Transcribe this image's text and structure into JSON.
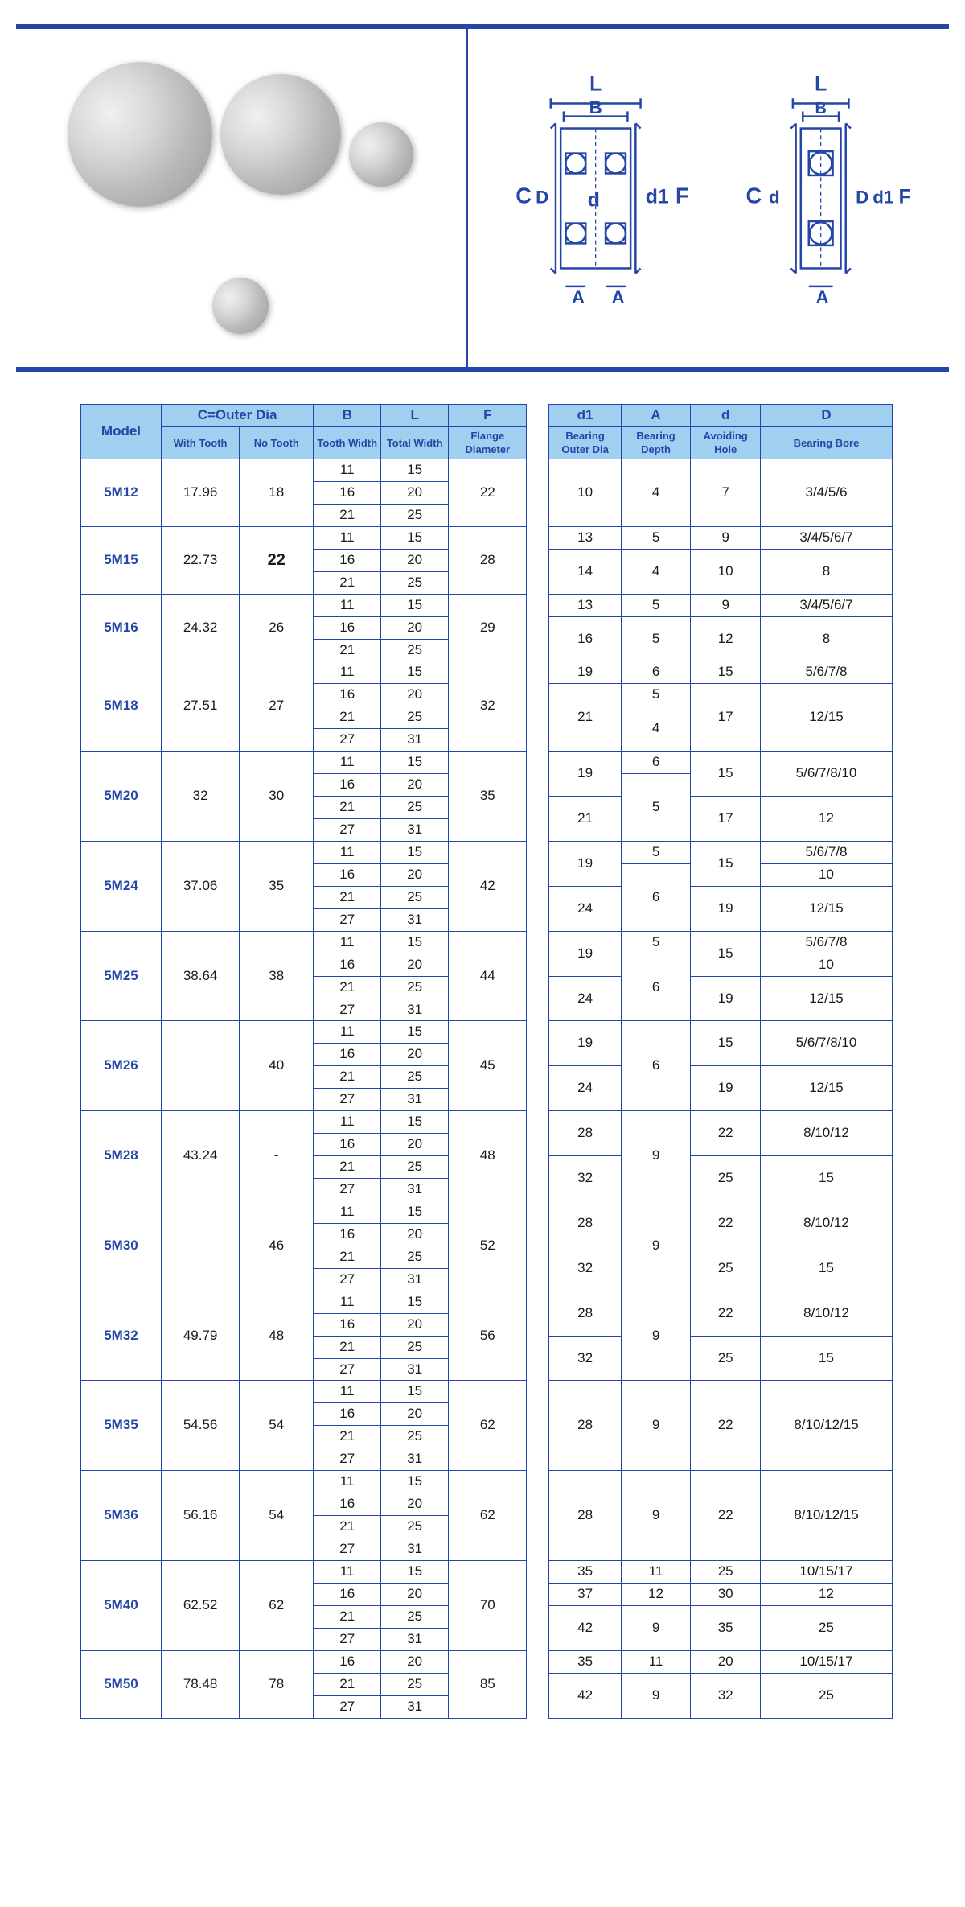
{
  "diagram_labels": {
    "L": "L",
    "B": "B",
    "C": "C",
    "D_upper": "D",
    "d": "d",
    "d1": "d1",
    "F": "F",
    "A": "A"
  },
  "headers": {
    "model": "Model",
    "c_group": "C=Outer Dia",
    "with_tooth": "With Tooth",
    "no_tooth": "No Tooth",
    "B": "B",
    "B_sub": "Tooth Width",
    "L": "L",
    "L_sub": "Total Width",
    "F": "F",
    "F_sub": "Flange Diameter",
    "d1": "d1",
    "d1_sub": "Bearing Outer Dia",
    "A": "A",
    "A_sub": "Bearing Depth",
    "d": "d",
    "d_sub": "Avoiding Hole",
    "D": "D",
    "D_sub": "Bearing Bore"
  },
  "rows": [
    {
      "model": "5M12",
      "wt": "17.96",
      "nt": "18",
      "B": [
        "11",
        "16",
        "21"
      ],
      "L": [
        "15",
        "20",
        "25"
      ],
      "F": "22",
      "right": [
        {
          "d1": "10",
          "A": "4",
          "d": "7",
          "D": "3/4/5/6"
        }
      ]
    },
    {
      "model": "5M15",
      "wt": "22.73",
      "nt": "22",
      "nt_bold": true,
      "B": [
        "11",
        "16",
        "21"
      ],
      "L": [
        "15",
        "20",
        "25"
      ],
      "F": "28",
      "right": [
        {
          "d1": "13",
          "A": "5",
          "d": "9",
          "D": "3/4/5/6/7"
        },
        {
          "d1": "14",
          "A": "4",
          "d": "10",
          "D": "8"
        }
      ]
    },
    {
      "model": "5M16",
      "wt": "24.32",
      "nt": "26",
      "B": [
        "11",
        "16",
        "21"
      ],
      "L": [
        "15",
        "20",
        "25"
      ],
      "F": "29",
      "right": [
        {
          "d1": "13",
          "A": "5",
          "d": "9",
          "D": "3/4/5/6/7"
        },
        {
          "d1": "16",
          "A": "5",
          "d": "12",
          "D": "8"
        }
      ]
    },
    {
      "model": "5M18",
      "wt": "27.51",
      "nt": "27",
      "B": [
        "11",
        "16",
        "21",
        "27"
      ],
      "L": [
        "15",
        "20",
        "25",
        "31"
      ],
      "F": "32",
      "right": [
        {
          "d1": "19",
          "A": "6",
          "d": "15",
          "D": "5/6/7/8"
        },
        {
          "d1": "21",
          "A": "5",
          "d": "17",
          "D": "12/15",
          "A2": "4"
        }
      ]
    },
    {
      "model": "5M20",
      "wt": "32",
      "nt": "30",
      "B": [
        "11",
        "16",
        "21",
        "27"
      ],
      "L": [
        "15",
        "20",
        "25",
        "31"
      ],
      "F": "35",
      "right": [
        {
          "d1": "19",
          "A": "6",
          "d": "15",
          "D": "5/6/7/8/10",
          "A2": "5"
        },
        {
          "d1": "21",
          "A": "",
          "d": "17",
          "D": "12"
        }
      ]
    },
    {
      "model": "5M24",
      "wt": "37.06",
      "nt": "35",
      "B": [
        "11",
        "16",
        "21",
        "27"
      ],
      "L": [
        "15",
        "20",
        "25",
        "31"
      ],
      "F": "42",
      "right": [
        {
          "d1": "19",
          "A": "5",
          "d": "15",
          "D": "5/6/7/8",
          "D2": "10",
          "A2": "6"
        },
        {
          "d1": "24",
          "A": "",
          "d": "19",
          "D": "12/15"
        }
      ]
    },
    {
      "model": "5M25",
      "wt": "38.64",
      "nt": "38",
      "B": [
        "11",
        "16",
        "21",
        "27"
      ],
      "L": [
        "15",
        "20",
        "25",
        "31"
      ],
      "F": "44",
      "right": [
        {
          "d1": "19",
          "A": "5",
          "d": "15",
          "D": "5/6/7/8",
          "D2": "10",
          "A2": "6"
        },
        {
          "d1": "24",
          "A": "",
          "d": "19",
          "D": "12/15"
        }
      ]
    },
    {
      "model": "5M26",
      "wt": "",
      "nt": "40",
      "B": [
        "11",
        "16",
        "21",
        "27"
      ],
      "L": [
        "15",
        "20",
        "25",
        "31"
      ],
      "F": "45",
      "right": [
        {
          "d1": "19",
          "A": "6",
          "d": "15",
          "D": "5/6/7/8/10"
        },
        {
          "d1": "24",
          "A": "",
          "d": "19",
          "D": "12/15"
        }
      ],
      "shared_A": "6"
    },
    {
      "model": "5M28",
      "wt": "43.24",
      "nt": "-",
      "B": [
        "11",
        "16",
        "21",
        "27"
      ],
      "L": [
        "15",
        "20",
        "25",
        "31"
      ],
      "F": "48",
      "right": [
        {
          "d1": "28",
          "A": "9",
          "d": "22",
          "D": "8/10/12"
        },
        {
          "d1": "32",
          "A": "",
          "d": "25",
          "D": "15"
        }
      ],
      "shared_A": "9"
    },
    {
      "model": "5M30",
      "wt": "",
      "nt": "46",
      "B": [
        "11",
        "16",
        "21",
        "27"
      ],
      "L": [
        "15",
        "20",
        "25",
        "31"
      ],
      "F": "52",
      "right": [
        {
          "d1": "28",
          "A": "9",
          "d": "22",
          "D": "8/10/12"
        },
        {
          "d1": "32",
          "A": "",
          "d": "25",
          "D": "15"
        }
      ],
      "shared_A": "9"
    },
    {
      "model": "5M32",
      "wt": "49.79",
      "nt": "48",
      "B": [
        "11",
        "16",
        "21",
        "27"
      ],
      "L": [
        "15",
        "20",
        "25",
        "31"
      ],
      "F": "56",
      "right": [
        {
          "d1": "28",
          "A": "9",
          "d": "22",
          "D": "8/10/12"
        },
        {
          "d1": "32",
          "A": "",
          "d": "25",
          "D": "15"
        }
      ],
      "shared_A": "9"
    },
    {
      "model": "5M35",
      "wt": "54.56",
      "nt": "54",
      "B": [
        "11",
        "16",
        "21",
        "27"
      ],
      "L": [
        "15",
        "20",
        "25",
        "31"
      ],
      "F": "62",
      "right": [
        {
          "d1": "28",
          "A": "9",
          "d": "22",
          "D": "8/10/12/15"
        }
      ]
    },
    {
      "model": "5M36",
      "wt": "56.16",
      "nt": "54",
      "B": [
        "11",
        "16",
        "21",
        "27"
      ],
      "L": [
        "15",
        "20",
        "25",
        "31"
      ],
      "F": "62",
      "right": [
        {
          "d1": "28",
          "A": "9",
          "d": "22",
          "D": "8/10/12/15"
        }
      ]
    },
    {
      "model": "5M40",
      "wt": "62.52",
      "nt": "62",
      "B": [
        "11",
        "16",
        "21",
        "27"
      ],
      "L": [
        "15",
        "20",
        "25",
        "31"
      ],
      "F": "70",
      "right": [
        {
          "d1": "35",
          "A": "11",
          "d": "25",
          "D": "10/15/17"
        },
        {
          "d1": "37",
          "A": "12",
          "d": "30",
          "D": "12"
        },
        {
          "d1": "42",
          "A": "9",
          "d": "35",
          "D": "25"
        }
      ]
    },
    {
      "model": "5M50",
      "wt": "78.48",
      "nt": "78",
      "B": [
        "16",
        "21",
        "27"
      ],
      "L": [
        "20",
        "25",
        "31"
      ],
      "F": "85",
      "right": [
        {
          "d1": "35",
          "A": "11",
          "d": "20",
          "D": "10/15/17"
        },
        {
          "d1": "42",
          "A": "9",
          "d": "32",
          "D": "25"
        }
      ]
    }
  ],
  "colors": {
    "border": "#2446a6",
    "header_bg": "#a0cff0",
    "accent": "#2446a6"
  }
}
